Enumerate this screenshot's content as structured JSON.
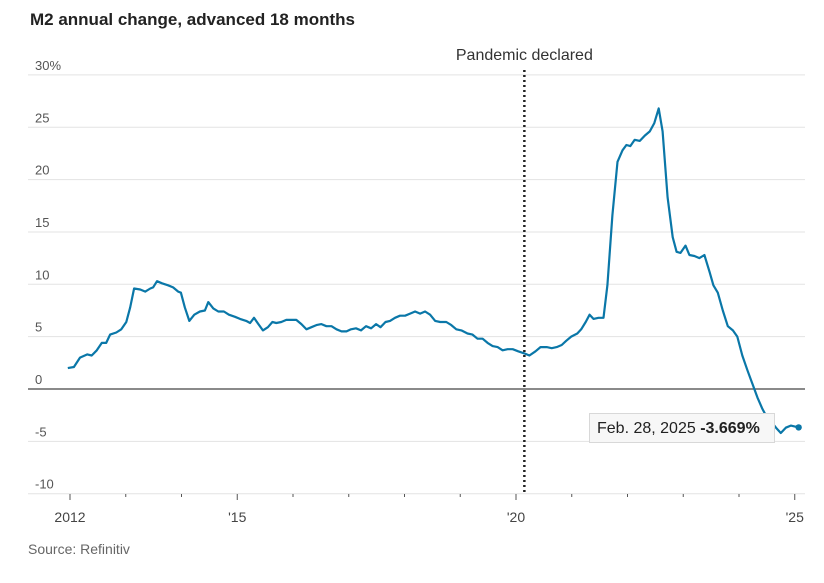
{
  "chart_data": {
    "type": "line",
    "title": "M2 annual change, advanced 18 months",
    "source": "Source: Refinitiv",
    "xlabel": "",
    "ylabel": "",
    "ylim": [
      -10,
      30
    ],
    "xlim": [
      2011.7,
      2025.2
    ],
    "y_ticks": [
      30,
      25,
      20,
      15,
      10,
      5,
      0,
      -5,
      -10
    ],
    "y_tick_labels": [
      "30%",
      "25",
      "20",
      "15",
      "10",
      "5",
      "0",
      "-5",
      "-10"
    ],
    "x_ticks": [
      2012,
      2013,
      2014,
      2015,
      2016,
      2017,
      2018,
      2019,
      2020,
      2021,
      2022,
      2023,
      2024,
      2025
    ],
    "x_tick_labels": [
      {
        "x": 2012,
        "label": "2012"
      },
      {
        "x": 2015,
        "label": "'15"
      },
      {
        "x": 2020,
        "label": "'20"
      },
      {
        "x": 2025,
        "label": "'25"
      }
    ],
    "grid": true,
    "annotation": {
      "x": 2020.15,
      "label": "Pandemic declared"
    },
    "tooltip": {
      "date": "Feb. 28, 2025",
      "value": "-3.669%"
    },
    "line_color": "#0a77a8",
    "series": [
      {
        "name": "M2 annual change (%)",
        "points": [
          [
            2011.96,
            2.0
          ],
          [
            2012.07,
            2.1
          ],
          [
            2012.18,
            3.0
          ],
          [
            2012.31,
            3.3
          ],
          [
            2012.39,
            3.2
          ],
          [
            2012.48,
            3.7
          ],
          [
            2012.57,
            4.4
          ],
          [
            2012.65,
            4.4
          ],
          [
            2012.72,
            5.2
          ],
          [
            2012.83,
            5.4
          ],
          [
            2012.92,
            5.7
          ],
          [
            2013.01,
            6.4
          ],
          [
            2013.08,
            7.8
          ],
          [
            2013.15,
            9.6
          ],
          [
            2013.26,
            9.5
          ],
          [
            2013.35,
            9.3
          ],
          [
            2013.44,
            9.6
          ],
          [
            2013.49,
            9.7
          ],
          [
            2013.56,
            10.3
          ],
          [
            2013.65,
            10.1
          ],
          [
            2013.76,
            9.9
          ],
          [
            2013.85,
            9.7
          ],
          [
            2013.94,
            9.3
          ],
          [
            2013.99,
            9.2
          ],
          [
            2014.06,
            7.8
          ],
          [
            2014.14,
            6.5
          ],
          [
            2014.23,
            7.1
          ],
          [
            2014.33,
            7.4
          ],
          [
            2014.42,
            7.5
          ],
          [
            2014.48,
            8.3
          ],
          [
            2014.57,
            7.7
          ],
          [
            2014.66,
            7.4
          ],
          [
            2014.76,
            7.4
          ],
          [
            2014.85,
            7.1
          ],
          [
            2014.96,
            6.9
          ],
          [
            2015.05,
            6.7
          ],
          [
            2015.16,
            6.5
          ],
          [
            2015.23,
            6.3
          ],
          [
            2015.3,
            6.8
          ],
          [
            2015.38,
            6.2
          ],
          [
            2015.46,
            5.6
          ],
          [
            2015.55,
            5.9
          ],
          [
            2015.63,
            6.4
          ],
          [
            2015.7,
            6.3
          ],
          [
            2015.79,
            6.4
          ],
          [
            2015.88,
            6.6
          ],
          [
            2015.97,
            6.6
          ],
          [
            2016.06,
            6.6
          ],
          [
            2016.15,
            6.2
          ],
          [
            2016.24,
            5.7
          ],
          [
            2016.33,
            5.9
          ],
          [
            2016.42,
            6.1
          ],
          [
            2016.51,
            6.2
          ],
          [
            2016.6,
            6.0
          ],
          [
            2016.69,
            6.0
          ],
          [
            2016.78,
            5.7
          ],
          [
            2016.87,
            5.5
          ],
          [
            2016.96,
            5.5
          ],
          [
            2017.04,
            5.7
          ],
          [
            2017.13,
            5.8
          ],
          [
            2017.22,
            5.6
          ],
          [
            2017.31,
            6.0
          ],
          [
            2017.4,
            5.8
          ],
          [
            2017.49,
            6.2
          ],
          [
            2017.57,
            5.9
          ],
          [
            2017.66,
            6.4
          ],
          [
            2017.74,
            6.5
          ],
          [
            2017.83,
            6.8
          ],
          [
            2017.92,
            7.0
          ],
          [
            2018.01,
            7.0
          ],
          [
            2018.1,
            7.2
          ],
          [
            2018.19,
            7.4
          ],
          [
            2018.28,
            7.2
          ],
          [
            2018.37,
            7.4
          ],
          [
            2018.46,
            7.1
          ],
          [
            2018.55,
            6.5
          ],
          [
            2018.64,
            6.4
          ],
          [
            2018.75,
            6.4
          ],
          [
            2018.84,
            6.1
          ],
          [
            2018.93,
            5.7
          ],
          [
            2019.02,
            5.6
          ],
          [
            2019.13,
            5.3
          ],
          [
            2019.22,
            5.2
          ],
          [
            2019.31,
            4.8
          ],
          [
            2019.4,
            4.8
          ],
          [
            2019.49,
            4.4
          ],
          [
            2019.58,
            4.1
          ],
          [
            2019.67,
            4.0
          ],
          [
            2019.76,
            3.7
          ],
          [
            2019.85,
            3.8
          ],
          [
            2019.94,
            3.8
          ],
          [
            2020.04,
            3.6
          ],
          [
            2020.15,
            3.4
          ],
          [
            2020.24,
            3.2
          ],
          [
            2020.35,
            3.6
          ],
          [
            2020.44,
            4.0
          ],
          [
            2020.55,
            4.0
          ],
          [
            2020.64,
            3.9
          ],
          [
            2020.73,
            4.0
          ],
          [
            2020.82,
            4.2
          ],
          [
            2020.9,
            4.6
          ],
          [
            2020.99,
            5.0
          ],
          [
            2021.1,
            5.3
          ],
          [
            2021.17,
            5.7
          ],
          [
            2021.25,
            6.4
          ],
          [
            2021.32,
            7.1
          ],
          [
            2021.39,
            6.7
          ],
          [
            2021.48,
            6.8
          ],
          [
            2021.57,
            6.8
          ],
          [
            2021.64,
            9.9
          ],
          [
            2021.73,
            16.6
          ],
          [
            2021.82,
            21.7
          ],
          [
            2021.91,
            22.8
          ],
          [
            2021.98,
            23.3
          ],
          [
            2022.05,
            23.2
          ],
          [
            2022.13,
            23.8
          ],
          [
            2022.22,
            23.7
          ],
          [
            2022.31,
            24.2
          ],
          [
            2022.4,
            24.6
          ],
          [
            2022.48,
            25.4
          ],
          [
            2022.56,
            26.8
          ],
          [
            2022.63,
            24.6
          ],
          [
            2022.72,
            18.3
          ],
          [
            2022.81,
            14.5
          ],
          [
            2022.88,
            13.1
          ],
          [
            2022.95,
            13.0
          ],
          [
            2023.04,
            13.7
          ],
          [
            2023.11,
            12.8
          ],
          [
            2023.2,
            12.7
          ],
          [
            2023.29,
            12.5
          ],
          [
            2023.38,
            12.8
          ],
          [
            2023.47,
            11.2
          ],
          [
            2023.54,
            9.9
          ],
          [
            2023.62,
            9.2
          ],
          [
            2023.71,
            7.5
          ],
          [
            2023.8,
            6.0
          ],
          [
            2023.89,
            5.6
          ],
          [
            2023.97,
            5.0
          ],
          [
            2024.06,
            3.2
          ],
          [
            2024.15,
            1.8
          ],
          [
            2024.24,
            0.5
          ],
          [
            2024.33,
            -0.8
          ],
          [
            2024.42,
            -1.9
          ],
          [
            2024.5,
            -2.7
          ],
          [
            2024.59,
            -3.2
          ],
          [
            2024.68,
            -3.8
          ],
          [
            2024.75,
            -4.2
          ],
          [
            2024.84,
            -3.7
          ],
          [
            2024.93,
            -3.5
          ],
          [
            2025.07,
            -3.669
          ]
        ]
      }
    ]
  }
}
